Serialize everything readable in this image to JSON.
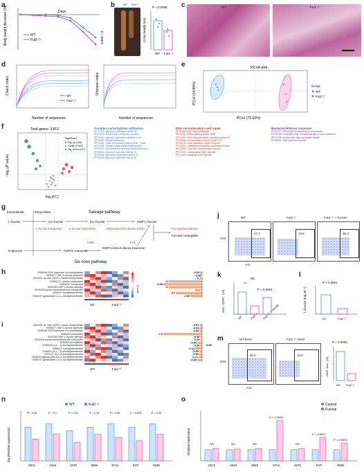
{
  "panels": {
    "a": "a",
    "b": "b",
    "c": "c",
    "d": "d",
    "e": "e",
    "f": "f",
    "g": "g",
    "h": "h",
    "i": "i",
    "j": "j",
    "k": "k",
    "l": "l",
    "m": "m",
    "n": "n",
    "o": "o"
  },
  "a": {
    "ylabel": "Body weight decrease (%)",
    "xlabel": "Days",
    "legend": [
      "WT",
      "Fut2⁻/⁻"
    ],
    "stat": "0.000 > d"
  },
  "b": {
    "labels": [
      "WT",
      "Fut2⁻/⁻"
    ],
    "p": "P = 0.0056",
    "ylabel": "Colon length (cm)"
  },
  "c": {
    "labels": [
      "WT",
      "Fut2⁻/⁻"
    ]
  },
  "d": {
    "ylabel1": "Chao1 index",
    "ylabel2": "Shannon index",
    "xlabel": "Number of sequences",
    "legend": [
      "WT",
      "Fut2⁻/⁻"
    ]
  },
  "e": {
    "title": "PCoA plot",
    "xlabel": "PCo1 (75.53%)",
    "ylabel": "PCo2 (14.89%)",
    "legend_title": "Group",
    "legend": [
      "WT",
      "Fut2⁻/⁻"
    ]
  },
  "f": {
    "total": "Total genes: 3,812",
    "legend": [
      "Significant",
      "Sig_up (145)",
      "Nodiff (3,560)",
      "Sig_down (107)"
    ],
    "xlabel": "log₂(FC)",
    "ylabel": "−log₁₀(P value)",
    "col1_title": "Complex carbohydrate utilization",
    "col1": [
      "PF07702: glycosyl hydrolase family 16",
      "PF14292: SusE outer membrane protein",
      "PF07930: glycosyl hydrolase catalytic core",
      "PF14050: chondroitinase B",
      "PF07487: outer membrane protein SusF_SusE",
      "PF07606: pectate lyase superfamily protein",
      "PF02422: carbohydrate binding module (family 6)",
      "PF08363: glycosyl hydrolase family 75",
      "PF05566: glycoside hydrolase family 97",
      "PF04616: glycosyl hydrolase family 43"
    ],
    "col2_title": "DNA recombination and repair",
    "col2": [
      "PF02384: N-6 DNA methylase",
      "PF01139: tRNA-splicing ligase RtcB",
      "PF02481: DNA recombination-mediator protein A",
      "PF05598: Transposase domain (DUF772)",
      "PF06745: DNA alkylation repair enzyme",
      "PF03432: relaxase/mobilization nuclease domain",
      "PF05698: Ypsil-like exonuclease domain",
      "PF13751: transposase DDE domain",
      "PF13333: integrase core domain"
    ],
    "col3_title": "Bacterial defense response",
    "col3": [
      "PF07927: HicA toxin of bacterial toxin-antitoxin",
      "PF06769: YoeB-like toxin of bacterial type II toxin-antitoxin",
      "PF01758: sodium bile acid symporter family",
      "PF09623: MAC/perforin domain"
    ]
  },
  "g": {
    "extracellular": "Extracellular",
    "intracellular": "Intracellular",
    "salvage": "Salvage pathway",
    "denovo": "De novo pathway",
    "lfucose": "L-fucose",
    "dfucose": "α-L-fucose",
    "bfucose": "β-L-fucose",
    "gdpfucose": "GDP-L-fucose",
    "transporter": "L-fucose transporter",
    "mutarotase": "L-fucose mutarotase",
    "fkp": "Bifunctional fucokinase (FKP)",
    "ftrans": "Fucosyltransferase",
    "conj": "Fucosyl conjugates",
    "glucose": "D-glucose",
    "gdpman": "GDP-D-mannose",
    "keto": "GDP-4-keto-6-deoxy-mannose",
    "gmd": "GMD",
    "fcl": "FCL"
  },
  "h": {
    "rows": [
      "0008446 GDP-mannose 4,6-dehydratase",
      "0050577 GDP-L-fucose synthase",
      "0042351 de novo GDP-L-fucose biosynthesis",
      "0036373 L-fucose mutarotase",
      "0050201 Fucokinase",
      "0042352 GDP-L-fucose salvage",
      "0015150 fucose transmembrane transporter",
      "0008417 fucosyltransferase",
      "0008107 galactoside 2-α-L-fucosyltransferase"
    ],
    "groups": [
      "WT",
      "Fut2⁻/⁻"
    ],
    "bars": [
      -0.39,
      -0.08,
      -0.1,
      -6,
      -6.93,
      -6,
      -0.3,
      -4.7,
      -2.09
    ],
    "bar_labels": [
      "-0.39",
      "-0.08",
      "-0.1",
      "-6",
      "-6.93",
      "-6",
      "-0.3",
      "-4.7",
      "-2.09"
    ],
    "scale_label": "Z score"
  },
  "i": {
    "rows": [
      "0042351 de novo GDP-L-fucose biosynthesis",
      "0050577 GDP-L-fucose synthase",
      "0008446 GDP-mannose 4,6-dehydratase",
      "0050201 fucokinase",
      "0042352 GDP-L-fucose salvage",
      "0015150 fucose transmembrane transporter",
      "0036065 fucosylation",
      "0046920 α-(1→3)-fucosyltransferase",
      "0008417 fucosyltransferase",
      "0046921 α-(1→6)-fucosyltransferase",
      "0031127 α-(1,2)-fucosyltransferase",
      "0008424 glycoprotein 6-α-L-fucosyltransferase",
      "0008107 galactoside 2-α-L-fucosyltransferase"
    ],
    "groups": [
      "WT",
      "Fut2⁻/⁻"
    ],
    "bars": [
      -0.52,
      -0.53,
      -0.54,
      -7.9,
      -0.38,
      -0.35,
      -0.99,
      -0.39,
      -1.44,
      -0.59,
      -0.59,
      -0.72,
      -0.99
    ],
    "bar_labels": [
      "-0.52",
      "-0.53",
      "-0.54",
      "-7.9",
      "-0.38",
      "-0.35",
      "-0.99",
      "-0.39",
      "-1.44",
      "-0.59",
      "-0.59",
      "-0.72",
      "-0.99"
    ],
    "extra": "0.83"
  },
  "j": {
    "cols": [
      "WT",
      "Fut2⁻/⁻",
      "Fut2⁻/⁻ + fucose"
    ],
    "values": [
      "47.3",
      "10.6",
      "36.3"
    ],
    "ylabel": "SSC",
    "xlabel": "AAL"
  },
  "k": {
    "ylabel": "AAL⁺ DAPI⁻ (%)",
    "ns": "NS",
    "sig": "**",
    "p": "P = 0.0001",
    "xlabels": [
      "WT",
      "Fut2⁻/⁻",
      "Fut2⁻/⁻ + fucose"
    ]
  },
  "l": {
    "ylabel": "L-fucose (mg ml⁻¹)",
    "p": "P < 0.0001",
    "xlabels": [
      "WT",
      "Fut2⁻/⁻"
    ]
  },
  "m": {
    "cols": [
      "WT:9343",
      "Fut2⁻/⁻:9343"
    ],
    "values": [
      "80.2",
      "14.8"
    ],
    "ylabel": "SSC",
    "xlabel": "AAL",
    "p": "P = 0.0009",
    "barlabel": "DAPI⁻AAL⁺ (%)"
  },
  "n": {
    "ylabel": "log₂(Relative expression)",
    "legend": [
      "WT",
      "Fut2⁻/⁻"
    ],
    "genes": [
      "0972",
      "1819",
      "3370",
      "3589",
      "3714",
      "FKP",
      "GMD"
    ],
    "pvalues": [
      "P = 0.04",
      "P = 0.1",
      "P = 0.04",
      "P = 0.18",
      "P = 0.09",
      "P = 0.023",
      "P = 0.06"
    ],
    "wt": [
      1.0,
      1.1,
      0.9,
      1.0,
      1.1,
      1.0,
      1.1
    ],
    "ko": [
      0.65,
      0.8,
      0.55,
      0.8,
      0.7,
      0.6,
      0.8
    ]
  },
  "o": {
    "ylabel": "Relative expression",
    "legend": [
      "Control",
      "Fucose"
    ],
    "genes": [
      "0972",
      "1819",
      "3589",
      "3714",
      "3370",
      "FKP",
      "GMD"
    ],
    "ns": [
      "NS",
      "NS",
      "NS",
      "NS"
    ],
    "pvalues": [
      "P = 0.0008",
      "P = 0.0007",
      "P = 0.0004"
    ],
    "control": [
      1.0,
      1.0,
      1.0,
      1.0,
      1.0,
      1.0,
      1.0
    ],
    "fucose": [
      1.1,
      1.05,
      1.1,
      3.6,
      1.1,
      2.1,
      1.6
    ]
  },
  "colors": {
    "wt": "#3a8fd9",
    "ko": "#e040a0",
    "heat_hi": "#d73027",
    "heat_lo": "#4575b4",
    "bar": "#f4a582"
  }
}
